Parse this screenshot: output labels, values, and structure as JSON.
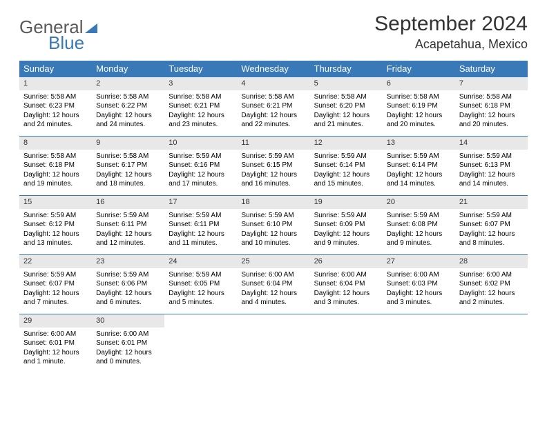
{
  "brand": {
    "word1": "General",
    "word2": "Blue"
  },
  "title": "September 2024",
  "location": "Acapetahua, Mexico",
  "colors": {
    "header_bg": "#3a79b7",
    "header_fg": "#ffffff",
    "daynum_bg": "#e8e8e8",
    "rule": "#3a79b7",
    "logo_gray": "#5a5a5a",
    "logo_blue": "#3a79b7"
  },
  "weekdays": [
    "Sunday",
    "Monday",
    "Tuesday",
    "Wednesday",
    "Thursday",
    "Friday",
    "Saturday"
  ],
  "days": [
    {
      "n": "1",
      "sr": "5:58 AM",
      "ss": "6:23 PM",
      "dl": "12 hours and 24 minutes."
    },
    {
      "n": "2",
      "sr": "5:58 AM",
      "ss": "6:22 PM",
      "dl": "12 hours and 24 minutes."
    },
    {
      "n": "3",
      "sr": "5:58 AM",
      "ss": "6:21 PM",
      "dl": "12 hours and 23 minutes."
    },
    {
      "n": "4",
      "sr": "5:58 AM",
      "ss": "6:21 PM",
      "dl": "12 hours and 22 minutes."
    },
    {
      "n": "5",
      "sr": "5:58 AM",
      "ss": "6:20 PM",
      "dl": "12 hours and 21 minutes."
    },
    {
      "n": "6",
      "sr": "5:58 AM",
      "ss": "6:19 PM",
      "dl": "12 hours and 20 minutes."
    },
    {
      "n": "7",
      "sr": "5:58 AM",
      "ss": "6:18 PM",
      "dl": "12 hours and 20 minutes."
    },
    {
      "n": "8",
      "sr": "5:58 AM",
      "ss": "6:18 PM",
      "dl": "12 hours and 19 minutes."
    },
    {
      "n": "9",
      "sr": "5:58 AM",
      "ss": "6:17 PM",
      "dl": "12 hours and 18 minutes."
    },
    {
      "n": "10",
      "sr": "5:59 AM",
      "ss": "6:16 PM",
      "dl": "12 hours and 17 minutes."
    },
    {
      "n": "11",
      "sr": "5:59 AM",
      "ss": "6:15 PM",
      "dl": "12 hours and 16 minutes."
    },
    {
      "n": "12",
      "sr": "5:59 AM",
      "ss": "6:14 PM",
      "dl": "12 hours and 15 minutes."
    },
    {
      "n": "13",
      "sr": "5:59 AM",
      "ss": "6:14 PM",
      "dl": "12 hours and 14 minutes."
    },
    {
      "n": "14",
      "sr": "5:59 AM",
      "ss": "6:13 PM",
      "dl": "12 hours and 14 minutes."
    },
    {
      "n": "15",
      "sr": "5:59 AM",
      "ss": "6:12 PM",
      "dl": "12 hours and 13 minutes."
    },
    {
      "n": "16",
      "sr": "5:59 AM",
      "ss": "6:11 PM",
      "dl": "12 hours and 12 minutes."
    },
    {
      "n": "17",
      "sr": "5:59 AM",
      "ss": "6:11 PM",
      "dl": "12 hours and 11 minutes."
    },
    {
      "n": "18",
      "sr": "5:59 AM",
      "ss": "6:10 PM",
      "dl": "12 hours and 10 minutes."
    },
    {
      "n": "19",
      "sr": "5:59 AM",
      "ss": "6:09 PM",
      "dl": "12 hours and 9 minutes."
    },
    {
      "n": "20",
      "sr": "5:59 AM",
      "ss": "6:08 PM",
      "dl": "12 hours and 9 minutes."
    },
    {
      "n": "21",
      "sr": "5:59 AM",
      "ss": "6:07 PM",
      "dl": "12 hours and 8 minutes."
    },
    {
      "n": "22",
      "sr": "5:59 AM",
      "ss": "6:07 PM",
      "dl": "12 hours and 7 minutes."
    },
    {
      "n": "23",
      "sr": "5:59 AM",
      "ss": "6:06 PM",
      "dl": "12 hours and 6 minutes."
    },
    {
      "n": "24",
      "sr": "5:59 AM",
      "ss": "6:05 PM",
      "dl": "12 hours and 5 minutes."
    },
    {
      "n": "25",
      "sr": "6:00 AM",
      "ss": "6:04 PM",
      "dl": "12 hours and 4 minutes."
    },
    {
      "n": "26",
      "sr": "6:00 AM",
      "ss": "6:04 PM",
      "dl": "12 hours and 3 minutes."
    },
    {
      "n": "27",
      "sr": "6:00 AM",
      "ss": "6:03 PM",
      "dl": "12 hours and 3 minutes."
    },
    {
      "n": "28",
      "sr": "6:00 AM",
      "ss": "6:02 PM",
      "dl": "12 hours and 2 minutes."
    },
    {
      "n": "29",
      "sr": "6:00 AM",
      "ss": "6:01 PM",
      "dl": "12 hours and 1 minute."
    },
    {
      "n": "30",
      "sr": "6:00 AM",
      "ss": "6:01 PM",
      "dl": "12 hours and 0 minutes."
    }
  ],
  "labels": {
    "sunrise": "Sunrise:",
    "sunset": "Sunset:",
    "daylight": "Daylight:"
  },
  "layout": {
    "start_weekday": 0,
    "rows": 5,
    "cols": 7
  }
}
